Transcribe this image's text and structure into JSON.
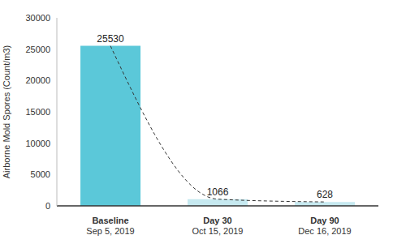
{
  "chart_data": {
    "type": "bar",
    "y_label": "Airborne Mold Spores (Count/m3)",
    "categories": [
      "Baseline\nSep 5, 2019",
      "Day 30\nOct 15, 2019",
      "Day 90\nDec 16, 2019"
    ],
    "series": [
      {
        "type": "bar",
        "colors": [
          "#5bc8d9",
          "#c6e9f0",
          "#c6e9f0"
        ],
        "values": [
          25530,
          1066,
          628
        ]
      },
      {
        "type": "line",
        "line_style": "dashed",
        "color": "#333333",
        "values": [
          25530,
          1066,
          628
        ]
      }
    ],
    "ylim": [
      0,
      30000
    ],
    "yticks": [
      0,
      5000,
      10000,
      15000,
      20000,
      25000,
      30000
    ],
    "grid": false,
    "data_labels": true
  }
}
